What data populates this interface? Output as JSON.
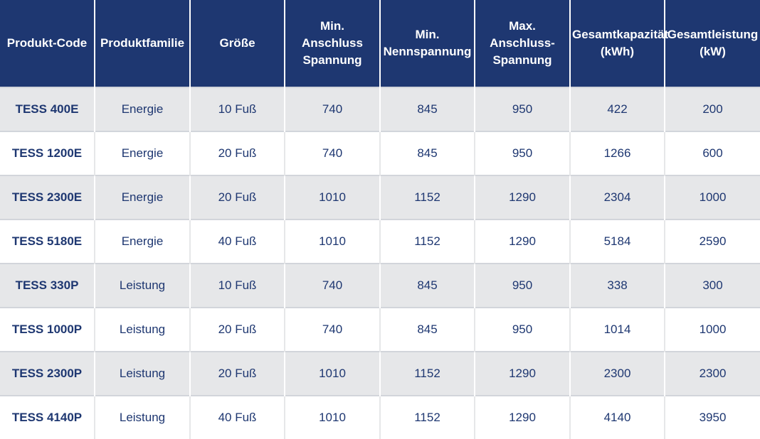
{
  "table": {
    "headers": [
      "Produkt-Code",
      "Produktfamilie",
      "Größe",
      "Min.\nAnschluss\nSpannung",
      "Min.\nNennspannung",
      "Max.\nAnschluss-\nSpannung",
      "Gesamtkapazität\n(kWh)",
      "Gesamtleistung\n(kW)"
    ],
    "rows": [
      [
        "TESS 400E",
        "Energie",
        "10 Fuß",
        "740",
        "845",
        "950",
        "422",
        "200"
      ],
      [
        "TESS 1200E",
        "Energie",
        "20 Fuß",
        "740",
        "845",
        "950",
        "1266",
        "600"
      ],
      [
        "TESS 2300E",
        "Energie",
        "20 Fuß",
        "1010",
        "1152",
        "1290",
        "2304",
        "1000"
      ],
      [
        "TESS 5180E",
        "Energie",
        "40 Fuß",
        "1010",
        "1152",
        "1290",
        "5184",
        "2590"
      ],
      [
        "TESS 330P",
        "Leistung",
        "10 Fuß",
        "740",
        "845",
        "950",
        "338",
        "300"
      ],
      [
        "TESS 1000P",
        "Leistung",
        "20 Fuß",
        "740",
        "845",
        "950",
        "1014",
        "1000"
      ],
      [
        "TESS 2300P",
        "Leistung",
        "20 Fuß",
        "1010",
        "1152",
        "1290",
        "2300",
        "2300"
      ],
      [
        "TESS 4140P",
        "Leistung",
        "40 Fuß",
        "1010",
        "1152",
        "1290",
        "4140",
        "3950"
      ]
    ]
  },
  "colors": {
    "header_bg": "#1e3771",
    "header_text": "#ffffff",
    "body_text": "#1e3771",
    "stripe_bg": "#e6e7e9"
  }
}
